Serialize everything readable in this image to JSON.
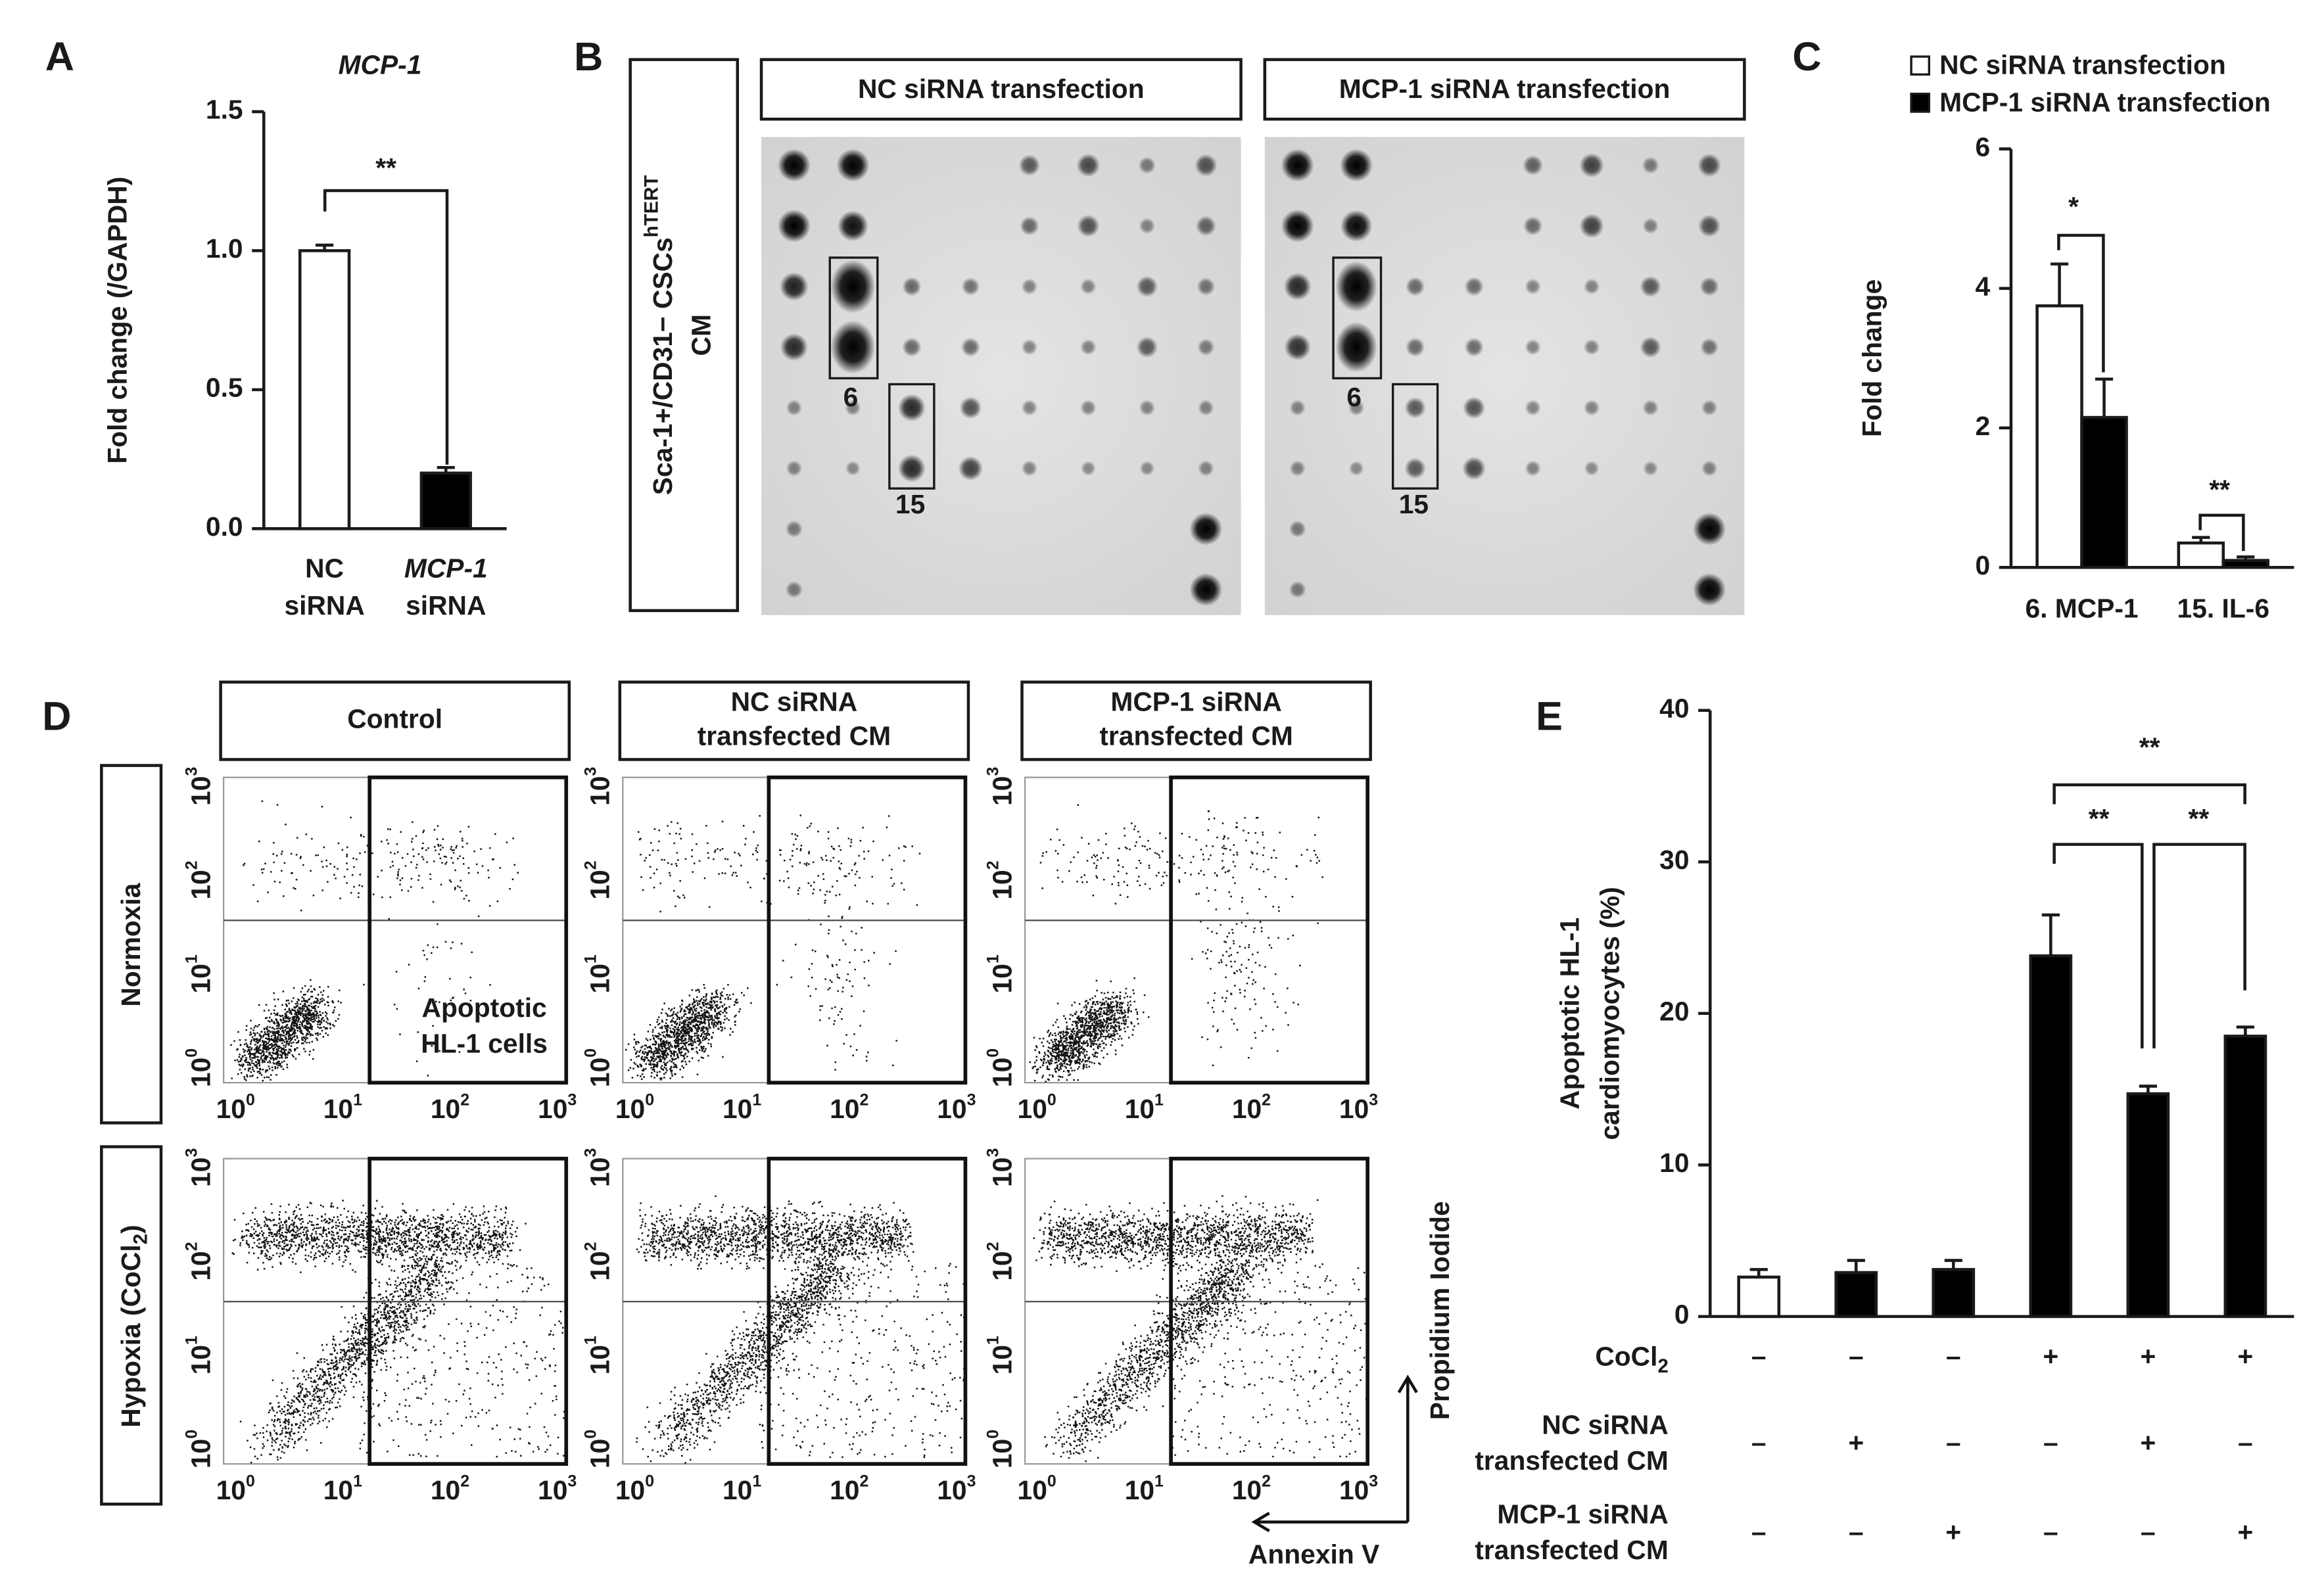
{
  "chart_data": [
    {
      "type": "bar",
      "panel_label": "A",
      "title": "MCP-1",
      "ylabel": "Fold change (/GAPDH)",
      "categories": [
        [
          "NC",
          "siRNA"
        ],
        [
          "MCP-1",
          "siRNA"
        ]
      ],
      "values": [
        1.0,
        0.2
      ],
      "errors": [
        0.02,
        0.02
      ],
      "colors": [
        "#ffffff",
        "#000000"
      ],
      "ylim": [
        0,
        1.5
      ],
      "yticks": [
        {
          "value": 0,
          "label": "0.0"
        },
        {
          "value": 0.5,
          "label": "0.5"
        },
        {
          "value": 1,
          "label": "1.0"
        },
        {
          "value": 1.5,
          "label": "1.5"
        }
      ],
      "annotations": [
        "**"
      ]
    },
    {
      "type": "grouped_bar",
      "panel_label": "C",
      "ylabel": "Fold change",
      "categories": [
        "6. MCP-1",
        "15. IL-6"
      ],
      "series": [
        {
          "name": "NC siRNA transfection",
          "color": "#ffffff",
          "values": [
            3.75,
            0.35
          ],
          "errors": [
            0.6,
            0.08
          ]
        },
        {
          "name": "MCP-1 siRNA transfection",
          "color": "#000000",
          "values": [
            2.15,
            0.1
          ],
          "errors": [
            0.55,
            0.05
          ]
        }
      ],
      "ylim": [
        0,
        6
      ],
      "yticks": [
        0,
        2,
        4,
        6
      ],
      "annotations": [
        "*",
        "**"
      ]
    },
    {
      "type": "bar",
      "panel_label": "E",
      "ylabel": [
        "Apoptotic HL-1",
        "cardiomyocytes (%)"
      ],
      "values": [
        2.6,
        2.9,
        3.1,
        23.8,
        14.7,
        18.5
      ],
      "errors": [
        0.5,
        0.8,
        0.6,
        2.7,
        0.5,
        0.6
      ],
      "colors": [
        "#ffffff",
        "#000000",
        "#000000",
        "#000000",
        "#000000",
        "#000000"
      ],
      "ylim": [
        0,
        40
      ],
      "yticks": [
        0,
        10,
        20,
        30,
        40
      ],
      "annotations": [
        "**",
        "**",
        "**"
      ],
      "conditions": [
        {
          "label": [
            {
              "text": "CoCl",
              "sub": "2"
            }
          ],
          "signs": [
            "–",
            "–",
            "–",
            "+",
            "+",
            "+"
          ]
        },
        {
          "label": [
            {
              "text": "NC siRNA"
            },
            {
              "text": "transfected CM"
            }
          ],
          "signs": [
            "–",
            "+",
            "–",
            "–",
            "+",
            "–"
          ]
        },
        {
          "label": [
            {
              "text": "MCP-1 siRNA"
            },
            {
              "text": "transfected CM"
            }
          ],
          "signs": [
            "–",
            "–",
            "+",
            "–",
            "–",
            "+"
          ]
        }
      ]
    }
  ],
  "blot_panel": {
    "label": "B",
    "side_label": [
      {
        "text": "Sca-1+/CD31− CSCs",
        "sup": "hTERT"
      },
      {
        "text": "CM"
      }
    ],
    "blots": [
      {
        "title": "NC siRNA transfection",
        "spot_labels": [
          "6",
          "15"
        ]
      },
      {
        "title": "MCP-1 siRNA transfection",
        "spot_labels": [
          "6",
          "15"
        ]
      }
    ]
  },
  "flow_panel": {
    "label": "D",
    "columns": [
      [
        "Control"
      ],
      [
        "NC siRNA",
        "transfected CM"
      ],
      [
        "MCP-1 siRNA",
        "transfected CM"
      ]
    ],
    "rows": [
      {
        "text": "Normoxia"
      },
      {
        "text": "Hypoxia (CoCl",
        "sub": "2",
        "after": ")"
      }
    ],
    "tick_base": "10",
    "tick_exps": [
      "0",
      "1",
      "2",
      "3"
    ],
    "gate_label": [
      "Apoptotic",
      "HL-1 cells"
    ],
    "x_axis": "Annexin V",
    "y_axis": "Propidium Iodide"
  }
}
